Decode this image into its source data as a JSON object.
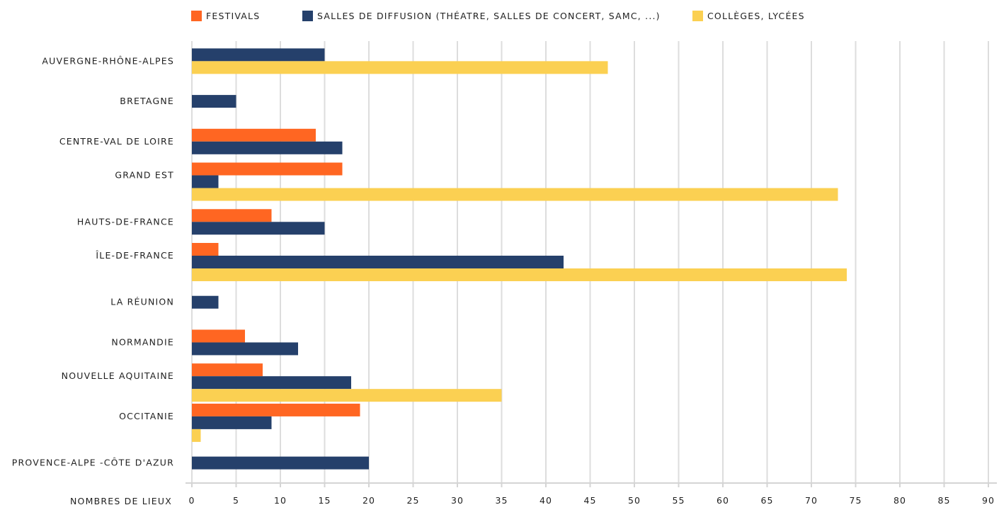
{
  "chart_data": {
    "type": "bar",
    "orientation": "horizontal",
    "categories": [
      "AUVERGNE-RHÔNE-ALPES",
      "BRETAGNE",
      "CENTRE-VAL DE LOIRE",
      "GRAND EST",
      "HAUTS-DE-FRANCE",
      "ÎLE-DE-FRANCE",
      "LA RÉUNION",
      "NORMANDIE",
      "NOUVELLE AQUITAINE",
      "OCCITANIE",
      "PROVENCE-ALPE -CÔTE D'AZUR"
    ],
    "series": [
      {
        "name": "FESTIVALS",
        "color": "#ff6622",
        "values": [
          0,
          0,
          14,
          17,
          9,
          3,
          0,
          6,
          8,
          19,
          0
        ]
      },
      {
        "name": "SALLES DE DIFFUSION (THÉATRE, SALLES DE CONCERT, SAMC, ...)",
        "color": "#25406b",
        "values": [
          15,
          5,
          17,
          3,
          15,
          42,
          3,
          12,
          18,
          9,
          20
        ]
      },
      {
        "name": "COLLÈGES, LYCÉES",
        "color": "#fbd052",
        "values": [
          47,
          0,
          0,
          73,
          0,
          74,
          0,
          0,
          35,
          1,
          0
        ]
      }
    ],
    "xlabel": "NOMBRES DE LIEUX",
    "xlim": [
      0,
      90
    ],
    "xticks": [
      0,
      5,
      10,
      15,
      20,
      25,
      30,
      35,
      40,
      45,
      50,
      55,
      60,
      65,
      70,
      75,
      80,
      85,
      90
    ],
    "grid": true,
    "legend_position": "top"
  }
}
